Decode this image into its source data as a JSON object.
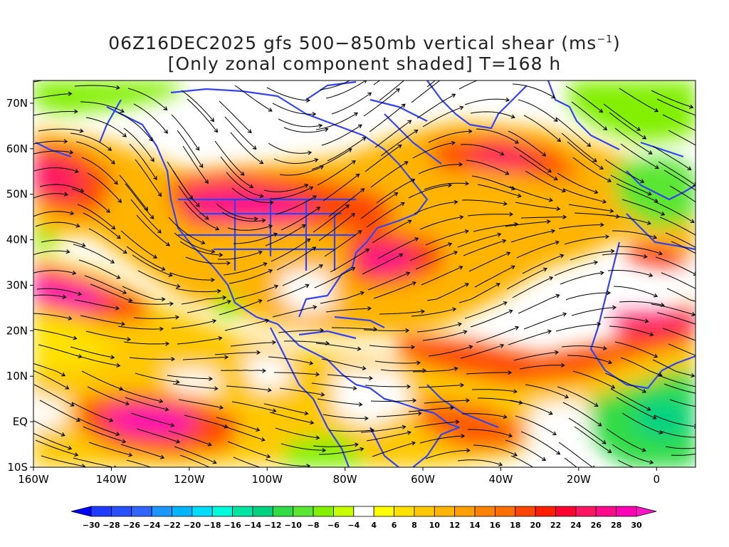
{
  "title": {
    "line1_prefix": "06Z16DEC2025 gfs 500−850mb vertical shear (ms",
    "line1_sup": "−1",
    "line1_suffix": ")",
    "line2": "[Only zonal component shaded] T=168 h"
  },
  "map": {
    "lon_range": [
      -160,
      10
    ],
    "lat_range": [
      -10,
      75
    ],
    "lat_labels": [
      "70N",
      "60N",
      "50N",
      "40N",
      "30N",
      "20N",
      "10N",
      "EQ",
      "10S"
    ],
    "lon_labels": [
      "160W",
      "140W",
      "120W",
      "100W",
      "80W",
      "60W",
      "40W",
      "20W",
      "0"
    ]
  },
  "colorbar": {
    "labels": [
      "−30",
      "−28",
      "−26",
      "−24",
      "−22",
      "−20",
      "−18",
      "−16",
      "−14",
      "−12",
      "−10",
      "−8",
      "−6",
      "−4",
      "4",
      "6",
      "8",
      "10",
      "12",
      "14",
      "16",
      "18",
      "20",
      "22",
      "24",
      "26",
      "28",
      "30"
    ],
    "colors": [
      "#0000ff",
      "#1e3cff",
      "#2850ff",
      "#3264ff",
      "#1e96ff",
      "#00b4ff",
      "#00dcff",
      "#00fadc",
      "#00e6a0",
      "#00d282",
      "#32dc46",
      "#5ae632",
      "#82f000",
      "#c8ff00",
      "#ffffff",
      "#ffff00",
      "#ffe100",
      "#ffc800",
      "#ffb400",
      "#ffa000",
      "#ff8200",
      "#ff6e00",
      "#ff4600",
      "#ff1e00",
      "#ff0032",
      "#ff1464",
      "#ff0a8c",
      "#ff00b4",
      "#ff14c8"
    ]
  },
  "colors": {
    "coast": "#3344ee",
    "stream": "#000000"
  }
}
